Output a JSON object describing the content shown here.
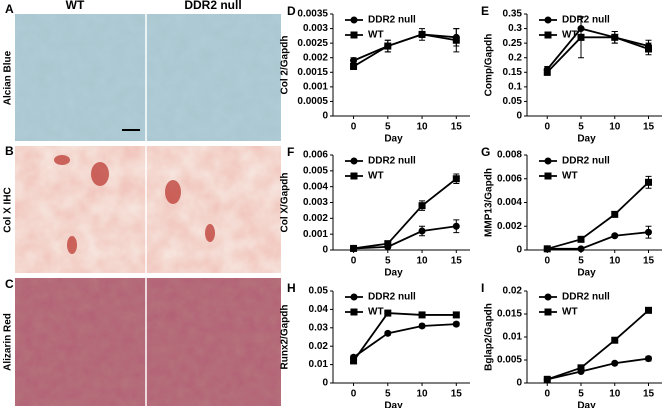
{
  "image_panels": {
    "columns": [
      "WT",
      "DDR2 null"
    ],
    "rows": [
      {
        "letter": "A",
        "label": "Alcian Blue"
      },
      {
        "letter": "B",
        "label": "Col X IHC"
      },
      {
        "letter": "C",
        "label": "Alizarin Red"
      }
    ]
  },
  "chart_data": [
    {
      "type": "line",
      "panel": "D",
      "ylabel": "Col 2/Gapdh",
      "xlabel": "Day",
      "x": [
        0,
        5,
        10,
        15
      ],
      "xlim": [
        -3,
        17
      ],
      "xticks": [
        0,
        5,
        10,
        15
      ],
      "ylim": [
        0,
        0.0035
      ],
      "yticks": [
        0,
        0.0005,
        0.001,
        0.0015,
        0.002,
        0.0025,
        0.003,
        0.0035
      ],
      "legend": "upper left",
      "series": [
        {
          "name": "DDR2 null",
          "color": "#000000",
          "marker": "circle",
          "values": [
            0.0019,
            0.0024,
            0.0028,
            0.0027
          ],
          "errors": [
            0.0001,
            0.0002,
            0.0002,
            0.0003
          ]
        },
        {
          "name": "WT",
          "color": "#000000",
          "marker": "square",
          "values": [
            0.0017,
            0.0024,
            0.0028,
            0.0026
          ],
          "errors": [
            0.0001,
            0.0002,
            0.0001,
            0.0004
          ]
        }
      ]
    },
    {
      "type": "line",
      "panel": "E",
      "ylabel": "Comp/Gapdh",
      "xlabel": "Day",
      "x": [
        0,
        5,
        10,
        15
      ],
      "xlim": [
        -3,
        17
      ],
      "xticks": [
        0,
        5,
        10,
        15
      ],
      "ylim": [
        0,
        0.35
      ],
      "yticks": [
        0,
        0.05,
        0.1,
        0.15,
        0.2,
        0.25,
        0.3,
        0.35
      ],
      "legend": "upper left",
      "series": [
        {
          "name": "DDR2 null",
          "color": "#000000",
          "marker": "circle",
          "values": [
            0.16,
            0.3,
            0.27,
            0.24
          ],
          "errors": [
            0.01,
            0.04,
            0.02,
            0.02
          ]
        },
        {
          "name": "WT",
          "color": "#000000",
          "marker": "square",
          "values": [
            0.15,
            0.27,
            0.27,
            0.23
          ],
          "errors": [
            0.01,
            0.07,
            0.02,
            0.02
          ]
        }
      ]
    },
    {
      "type": "line",
      "panel": "F",
      "ylabel": "Col X/Gapdh",
      "xlabel": "Day",
      "x": [
        0,
        5,
        10,
        15
      ],
      "xlim": [
        -3,
        17
      ],
      "xticks": [
        0,
        5,
        10,
        15
      ],
      "ylim": [
        0,
        0.006
      ],
      "yticks": [
        0,
        0.001,
        0.002,
        0.003,
        0.004,
        0.005,
        0.006
      ],
      "legend": "upper left",
      "series": [
        {
          "name": "DDR2 null",
          "color": "#000000",
          "marker": "circle",
          "values": [
            0.0001,
            0.0002,
            0.0012,
            0.0015
          ],
          "errors": [
            5e-05,
            0.0001,
            0.0003,
            0.0004
          ]
        },
        {
          "name": "WT",
          "color": "#000000",
          "marker": "square",
          "values": [
            0.0001,
            0.0004,
            0.0028,
            0.0045
          ],
          "errors": [
            5e-05,
            0.0001,
            0.0003,
            0.0003
          ]
        }
      ]
    },
    {
      "type": "line",
      "panel": "G",
      "ylabel": "MMP13/Gapdh",
      "xlabel": "Day",
      "x": [
        0,
        5,
        10,
        15
      ],
      "xlim": [
        -3,
        17
      ],
      "xticks": [
        0,
        5,
        10,
        15
      ],
      "ylim": [
        0,
        0.008
      ],
      "yticks": [
        0,
        0.002,
        0.004,
        0.006,
        0.008
      ],
      "legend": "upper left",
      "series": [
        {
          "name": "DDR2 null",
          "color": "#000000",
          "marker": "circle",
          "values": [
            0.0001,
            0.0001,
            0.0012,
            0.0015
          ],
          "errors": [
            5e-05,
            5e-05,
            0.0001,
            0.0005
          ]
        },
        {
          "name": "WT",
          "color": "#000000",
          "marker": "square",
          "values": [
            0.0001,
            0.0009,
            0.003,
            0.0057
          ],
          "errors": [
            5e-05,
            0.0001,
            0.0001,
            0.0005
          ]
        }
      ]
    },
    {
      "type": "line",
      "panel": "H",
      "ylabel": "Runx2/Gapdh",
      "xlabel": "Day",
      "x": [
        0,
        5,
        10,
        15
      ],
      "xlim": [
        -3,
        17
      ],
      "xticks": [
        0,
        5,
        10,
        15
      ],
      "ylim": [
        0,
        0.05
      ],
      "yticks": [
        0,
        0.01,
        0.02,
        0.03,
        0.04,
        0.05
      ],
      "legend": "upper left",
      "series": [
        {
          "name": "DDR2 null",
          "color": "#000000",
          "marker": "circle",
          "values": [
            0.014,
            0.027,
            0.031,
            0.032
          ],
          "errors": [
            0.001,
            0.001,
            0.001,
            0.001
          ]
        },
        {
          "name": "WT",
          "color": "#000000",
          "marker": "square",
          "values": [
            0.012,
            0.038,
            0.037,
            0.037
          ],
          "errors": [
            0.001,
            0.001,
            0.001,
            0.001
          ]
        }
      ]
    },
    {
      "type": "line",
      "panel": "I",
      "ylabel": "Bglap2/Gapdh",
      "xlabel": "Day",
      "x": [
        0,
        5,
        10,
        15
      ],
      "xlim": [
        -3,
        17
      ],
      "xticks": [
        0,
        5,
        10,
        15
      ],
      "ylim": [
        0,
        0.02
      ],
      "yticks": [
        0,
        0.005,
        0.01,
        0.015,
        0.02
      ],
      "legend": "upper left",
      "series": [
        {
          "name": "DDR2 null",
          "color": "#000000",
          "marker": "circle",
          "values": [
            0.0008,
            0.0025,
            0.0043,
            0.0053
          ],
          "errors": [
            0.0001,
            0.0002,
            0.0003,
            0.0005
          ]
        },
        {
          "name": "WT",
          "color": "#000000",
          "marker": "square",
          "values": [
            0.0008,
            0.0033,
            0.0093,
            0.0158
          ],
          "errors": [
            0.0001,
            0.0002,
            0.0003,
            0.0004
          ]
        }
      ]
    }
  ]
}
